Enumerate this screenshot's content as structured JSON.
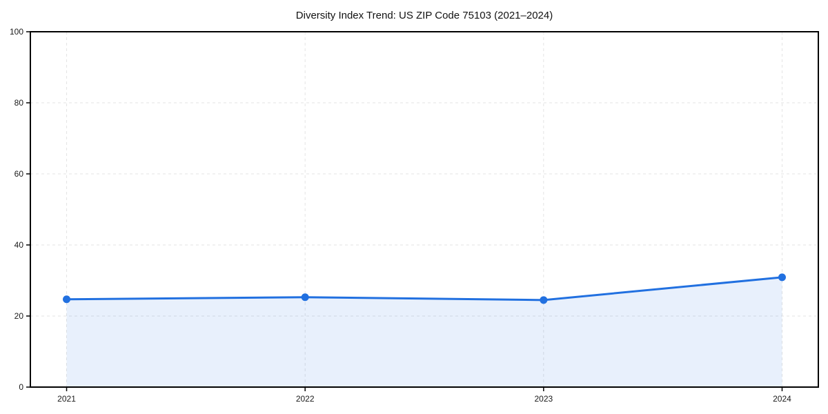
{
  "page": {
    "background": "#ffffff"
  },
  "chart_data": {
    "type": "area",
    "title": "Diversity Index Trend: US ZIP Code 75103 (2021–2024)",
    "categories": [
      "2021",
      "2022",
      "2023",
      "2024"
    ],
    "series": [
      {
        "name": "Diversity Index",
        "values": [
          24.7,
          25.3,
          24.5,
          30.9
        ]
      }
    ],
    "xlabel": "",
    "ylabel": "",
    "ylim": [
      0,
      100
    ],
    "yticks": [
      0,
      20,
      40,
      60,
      80,
      100
    ],
    "grid": true,
    "grid_style": "dashed",
    "legend": "none",
    "line_color": "#2170e0",
    "fill_color": "rgba(33, 112, 224, 0.10)",
    "marker": "circle",
    "marker_radius": 5.5,
    "line_width": 3,
    "grid_color": "#e3e3e3",
    "axis_color": "#000000",
    "text_color": "#1a1a1a"
  }
}
